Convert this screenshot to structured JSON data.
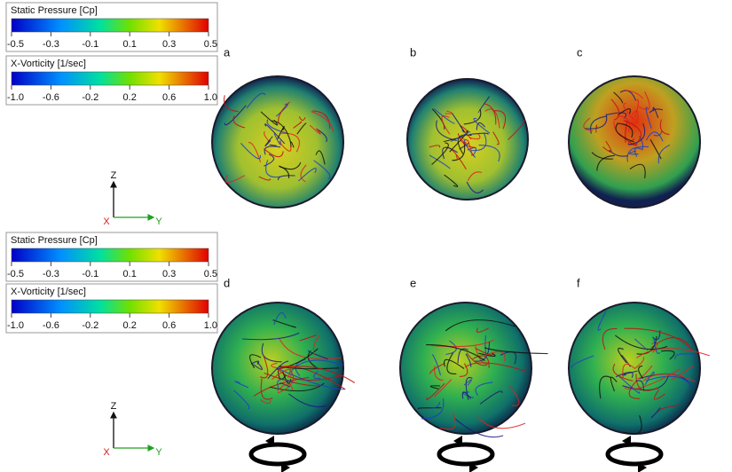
{
  "legends": [
    {
      "colorbars": [
        {
          "title": "Static Pressure [Cp]",
          "ticks": [
            "-0.5",
            "-0.3",
            "-0.1",
            "0.1",
            "0.3",
            "0.5"
          ]
        },
        {
          "title": "X-Vorticity [1/sec]",
          "ticks": [
            "-1.0",
            "-0.6",
            "-0.2",
            "0.2",
            "0.6",
            "1.0"
          ]
        }
      ]
    },
    {
      "colorbars": [
        {
          "title": "Static Pressure [Cp]",
          "ticks": [
            "-0.5",
            "-0.3",
            "-0.1",
            "0.1",
            "0.3",
            "0.5"
          ]
        },
        {
          "title": "X-Vorticity [1/sec]",
          "ticks": [
            "-1.0",
            "-0.6",
            "-0.2",
            "0.2",
            "0.6",
            "1.0"
          ]
        }
      ]
    }
  ],
  "axes": [
    {
      "z": "Z",
      "x": "X",
      "y": "Y"
    },
    {
      "z": "Z",
      "x": "X",
      "y": "Y"
    }
  ],
  "panels": [
    "a",
    "b",
    "c",
    "d",
    "e",
    "f"
  ]
}
